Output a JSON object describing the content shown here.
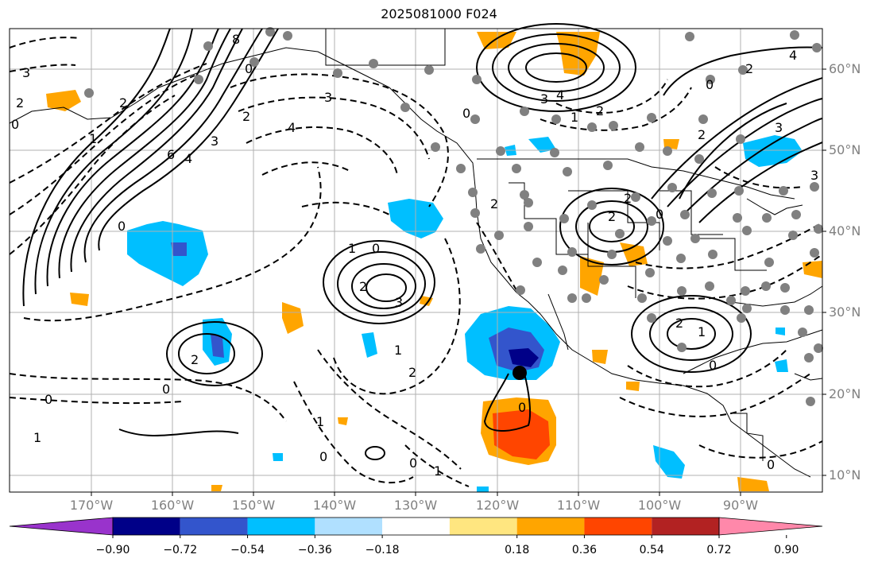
{
  "title": "2025081000 F024",
  "lat_labels": [
    "60°N",
    "50°N",
    "40°N",
    "30°N",
    "20°N",
    "10°N"
  ],
  "lon_labels": [
    "170°W",
    "160°W",
    "150°W",
    "140°W",
    "130°W",
    "120°W",
    "110°W",
    "100°W",
    "90°W"
  ],
  "colorbar": {
    "tick_labels": [
      "−0.90",
      "−0.72",
      "−0.54",
      "−0.36",
      "−0.18",
      "0.18",
      "0.36",
      "0.54",
      "0.72",
      "0.90"
    ],
    "colors": [
      "#9933cc",
      "#000088",
      "#3355cc",
      "#00bfff",
      "#b0e0ff",
      "#ffffff",
      "#ffe680",
      "#ffa500",
      "#ff4500",
      "#b22222",
      "#ff88aa"
    ]
  },
  "contour_labels": [
    "8",
    "0",
    "3",
    "2",
    "1",
    "0",
    "2",
    "6",
    "4",
    "3",
    "2",
    "3",
    "4",
    "0",
    "4",
    "3",
    "2",
    "1",
    "0",
    "2",
    "3",
    "1",
    "0",
    "1",
    "2",
    "0",
    "1",
    "0",
    "1",
    "0",
    "1",
    "2",
    "0",
    "3",
    "4",
    "2",
    "0",
    "3",
    "2",
    "2",
    "0",
    "2",
    "2",
    "0",
    "1",
    "2",
    "0",
    "0"
  ],
  "fill_colors": {
    "negative_light": "#00bfff",
    "negative_mid": "#3355cc",
    "negative_dark": "#000088",
    "positive_light": "#ffa500",
    "positive_strong": "#ff4500"
  },
  "station_marker_color": "#808080"
}
